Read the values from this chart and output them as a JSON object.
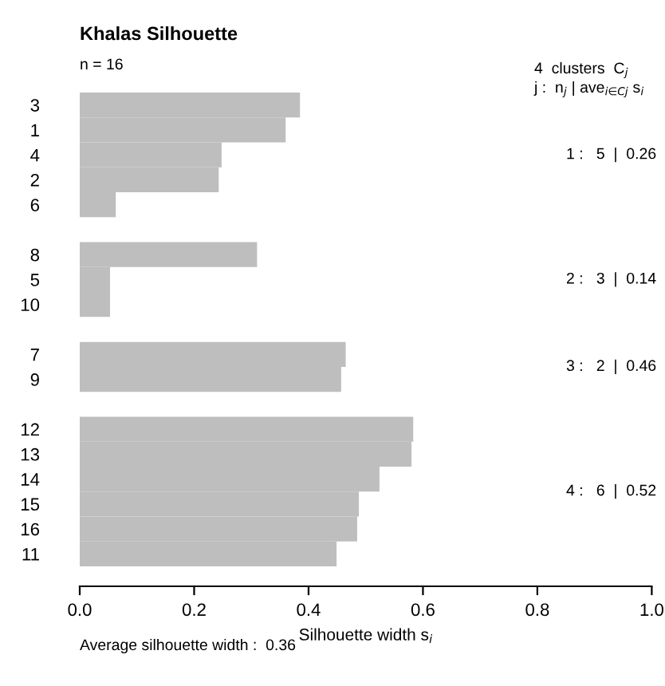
{
  "chart_data": {
    "type": "bar",
    "orientation": "horizontal",
    "title": "Khalas Silhouette",
    "xlabel": "Silhouette width s$_{i}$",
    "categories": [
      "3",
      "1",
      "4",
      "2",
      "6",
      null,
      "8",
      "5",
      "10",
      null,
      "7",
      "9",
      null,
      "12",
      "13",
      "14",
      "15",
      "16",
      "11"
    ],
    "values": [
      0.385,
      0.36,
      0.248,
      0.243,
      0.063,
      null,
      0.31,
      0.053,
      0.053,
      null,
      0.465,
      0.457,
      null,
      0.583,
      0.58,
      0.524,
      0.488,
      0.485,
      0.449
    ],
    "color": "#bebebe",
    "xlim": [
      0,
      1
    ],
    "xticks": [
      {
        "value": 0,
        "label": "0.0"
      },
      {
        "value": 0.2,
        "label": "0.2"
      },
      {
        "value": 0.4,
        "label": "0.4"
      },
      {
        "value": 0.6,
        "label": "0.6"
      },
      {
        "value": 0.8,
        "label": "0.8"
      },
      {
        "value": 1,
        "label": "1.0"
      }
    ],
    "annotations": [
      "n = 16",
      "4  clusters  C$_{j}$",
      "j :  n$_{j}$ | ave$_{i∈Cj}$ s$_{i}$",
      "1 :   5  |  0.26",
      "2 :   3  |  0.14",
      "3 :   2  |  0.46",
      "4 :   6  |  0.52",
      "Average silhouette width :  0.36"
    ]
  }
}
